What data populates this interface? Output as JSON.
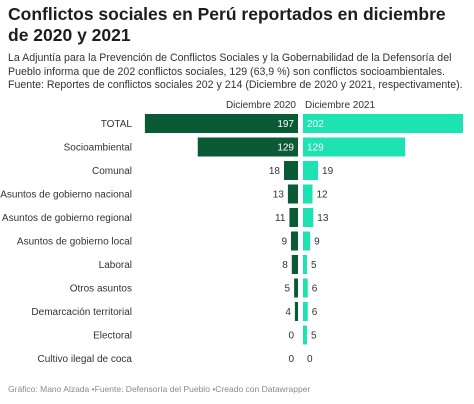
{
  "title": "Conflictos sociales en Perú reportados en diciembre de 2020 y 2021",
  "description": "La Adjuntía para la Prevención de Conflictos Sociales y la Gobernabilidad de la Defensoría del Pueblo informa que de 202 conflictos sociales, 129 (63,9 %) son conflictos socioambientales. Fuente: Reportes de conflictos sociales 202 y 214 (Diciembre de 2020 y 2021, respectivamente).",
  "footer": {
    "graphic": "Gráfico: Mano Alzada",
    "source": "Fuente: Defensoría del Pueblo",
    "tool": "Creado con Datawrapper"
  },
  "colors": {
    "dic2020_bar": "#0a5a36",
    "dic2021_bar": "#1de3b2",
    "label_dark": "#333333",
    "grid": "#e3e3e3"
  },
  "chart_data": {
    "type": "bar",
    "orientation": "horizontal",
    "layout": "butterfly",
    "categories": [
      "TOTAL",
      "Socioambiental",
      "Comunal",
      "Asuntos de gobierno nacional",
      "Asuntos de gobierno regional",
      "Asuntos de gobierno local",
      "Laboral",
      "Otros asuntos",
      "Demarcación territorial",
      "Electoral",
      "Cultivo ilegal de coca"
    ],
    "series": [
      {
        "name": "Diciembre 2020",
        "values": [
          197,
          129,
          18,
          13,
          11,
          9,
          8,
          5,
          4,
          0,
          0
        ]
      },
      {
        "name": "Diciembre 2021",
        "values": [
          202,
          129,
          19,
          12,
          13,
          9,
          5,
          6,
          6,
          5,
          0
        ]
      }
    ],
    "xlim": [
      0,
      202
    ],
    "legend": "top"
  }
}
